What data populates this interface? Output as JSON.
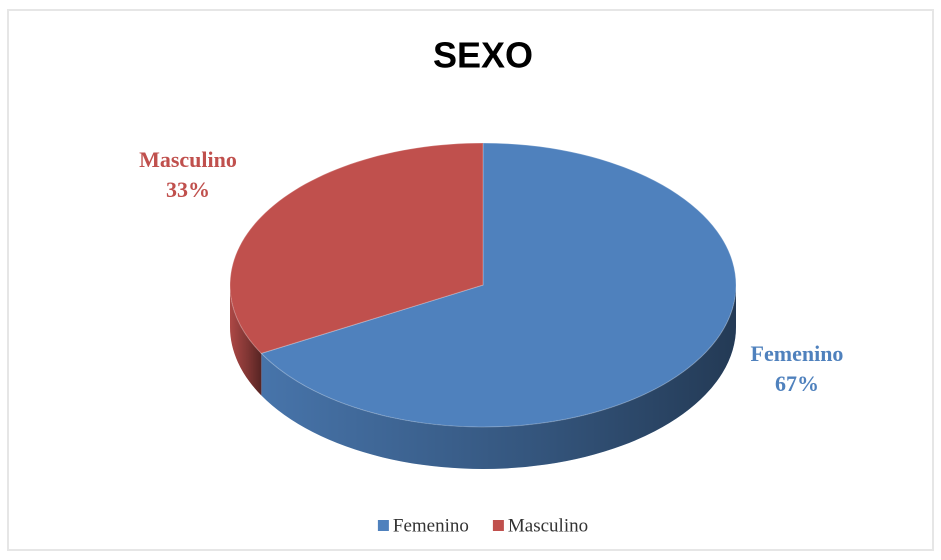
{
  "chart_data": {
    "type": "pie",
    "title": "SEXO",
    "categories": [
      "Femenino",
      "Masculino"
    ],
    "values": [
      67,
      33
    ],
    "value_labels": [
      "67%",
      "33%"
    ],
    "colors": [
      "#4f81bd",
      "#c0504d"
    ],
    "legend": "bottom"
  }
}
